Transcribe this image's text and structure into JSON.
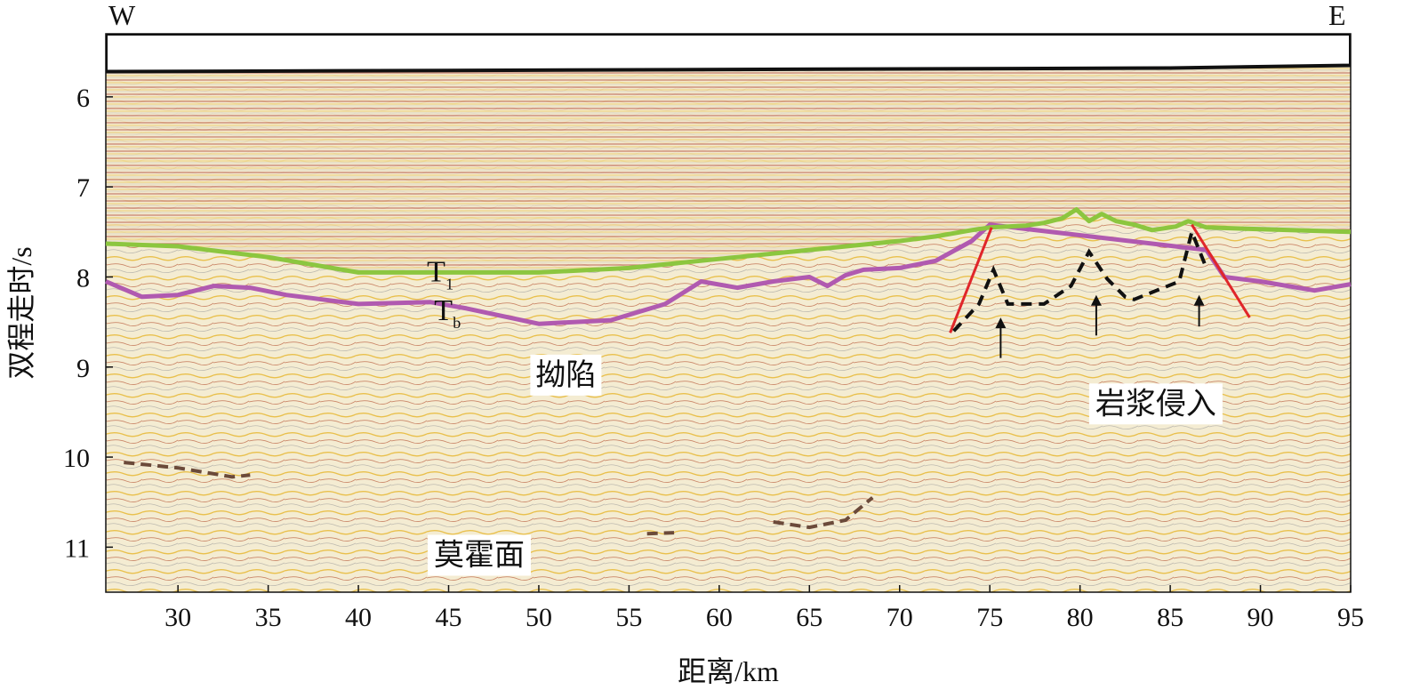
{
  "direction": {
    "west": "W",
    "east": "E"
  },
  "axes": {
    "x": {
      "label": "距离/km",
      "min": 26,
      "max": 95,
      "ticks": [
        30,
        35,
        40,
        45,
        50,
        55,
        60,
        65,
        70,
        75,
        80,
        85,
        90,
        95
      ]
    },
    "y": {
      "label": "双程走时/s",
      "min": 5.3,
      "max": 11.5,
      "inverted": true,
      "ticks": [
        6,
        7,
        8,
        9,
        10,
        11
      ]
    }
  },
  "horizons": {
    "T1": {
      "label": "T",
      "sub": "1",
      "color": "#8cc63f",
      "points": [
        [
          26,
          7.63
        ],
        [
          30,
          7.66
        ],
        [
          35,
          7.78
        ],
        [
          40,
          7.95
        ],
        [
          45,
          7.95
        ],
        [
          50,
          7.95
        ],
        [
          55,
          7.9
        ],
        [
          60,
          7.8
        ],
        [
          65,
          7.7
        ],
        [
          70,
          7.6
        ],
        [
          72,
          7.55
        ],
        [
          74,
          7.48
        ],
        [
          75,
          7.45
        ],
        [
          77,
          7.43
        ],
        [
          78,
          7.4
        ],
        [
          79,
          7.35
        ],
        [
          79.8,
          7.25
        ],
        [
          80.5,
          7.38
        ],
        [
          81.2,
          7.3
        ],
        [
          82,
          7.38
        ],
        [
          83,
          7.42
        ],
        [
          84,
          7.48
        ],
        [
          85.3,
          7.44
        ],
        [
          86,
          7.38
        ],
        [
          87,
          7.45
        ],
        [
          90,
          7.47
        ],
        [
          95,
          7.5
        ]
      ]
    },
    "Tb": {
      "label": "T",
      "sub": "b",
      "color": "#b05ab0",
      "points": [
        [
          26,
          8.05
        ],
        [
          28,
          8.22
        ],
        [
          30,
          8.2
        ],
        [
          32,
          8.1
        ],
        [
          34,
          8.12
        ],
        [
          36,
          8.2
        ],
        [
          40,
          8.3
        ],
        [
          44,
          8.28
        ],
        [
          46,
          8.35
        ],
        [
          50,
          8.52
        ],
        [
          54,
          8.48
        ],
        [
          57,
          8.3
        ],
        [
          59,
          8.05
        ],
        [
          61,
          8.12
        ],
        [
          63,
          8.05
        ],
        [
          65,
          8.0
        ],
        [
          66,
          8.1
        ],
        [
          67,
          7.98
        ],
        [
          68,
          7.92
        ],
        [
          70,
          7.9
        ],
        [
          72,
          7.82
        ],
        [
          74,
          7.6
        ],
        [
          75,
          7.42
        ],
        [
          87,
          7.7
        ],
        [
          88,
          8.0
        ],
        [
          90,
          8.05
        ],
        [
          93,
          8.15
        ],
        [
          95,
          8.08
        ]
      ]
    },
    "moho_segments": [
      [
        [
          27,
          10.06
        ],
        [
          30,
          10.12
        ],
        [
          33,
          10.22
        ],
        [
          34,
          10.2
        ]
      ],
      [
        [
          63,
          10.72
        ],
        [
          65,
          10.78
        ],
        [
          67,
          10.7
        ],
        [
          68.5,
          10.45
        ]
      ],
      [
        [
          56,
          10.85
        ],
        [
          57.5,
          10.84
        ]
      ]
    ],
    "intrusion_outline": [
      [
        73,
        8.6
      ],
      [
        74.4,
        8.3
      ],
      [
        75.2,
        7.92
      ],
      [
        76,
        8.3
      ],
      [
        78,
        8.3
      ],
      [
        79.5,
        8.1
      ],
      [
        80.5,
        7.72
      ],
      [
        81.5,
        8.02
      ],
      [
        82.5,
        8.22
      ],
      [
        83,
        8.25
      ],
      [
        85.5,
        8.05
      ],
      [
        86.2,
        7.5
      ],
      [
        87,
        7.9
      ]
    ],
    "faults": [
      [
        [
          72.8,
          8.62
        ],
        [
          75.1,
          7.45
        ]
      ],
      [
        [
          86.2,
          7.42
        ],
        [
          89.4,
          8.45
        ]
      ]
    ]
  },
  "arrows": [
    {
      "x": 75.6,
      "y_from": 8.9,
      "y_to": 8.45
    },
    {
      "x": 80.9,
      "y_from": 8.65,
      "y_to": 8.2
    },
    {
      "x": 86.6,
      "y_from": 8.55,
      "y_to": 8.2
    }
  ],
  "annotations": {
    "depression": {
      "text": "拗陷",
      "x": 51.5,
      "y": 9.08
    },
    "intrusion": {
      "text": "岩浆侵入",
      "x": 84.2,
      "y": 9.4
    },
    "moho": {
      "text": "莫霍面",
      "x": 46.7,
      "y": 11.08
    }
  },
  "colors": {
    "frame": "#111111",
    "fault": "#e0262a",
    "arrow": "#111111",
    "dashed": "#111111",
    "moho": "#6b4a3a"
  }
}
